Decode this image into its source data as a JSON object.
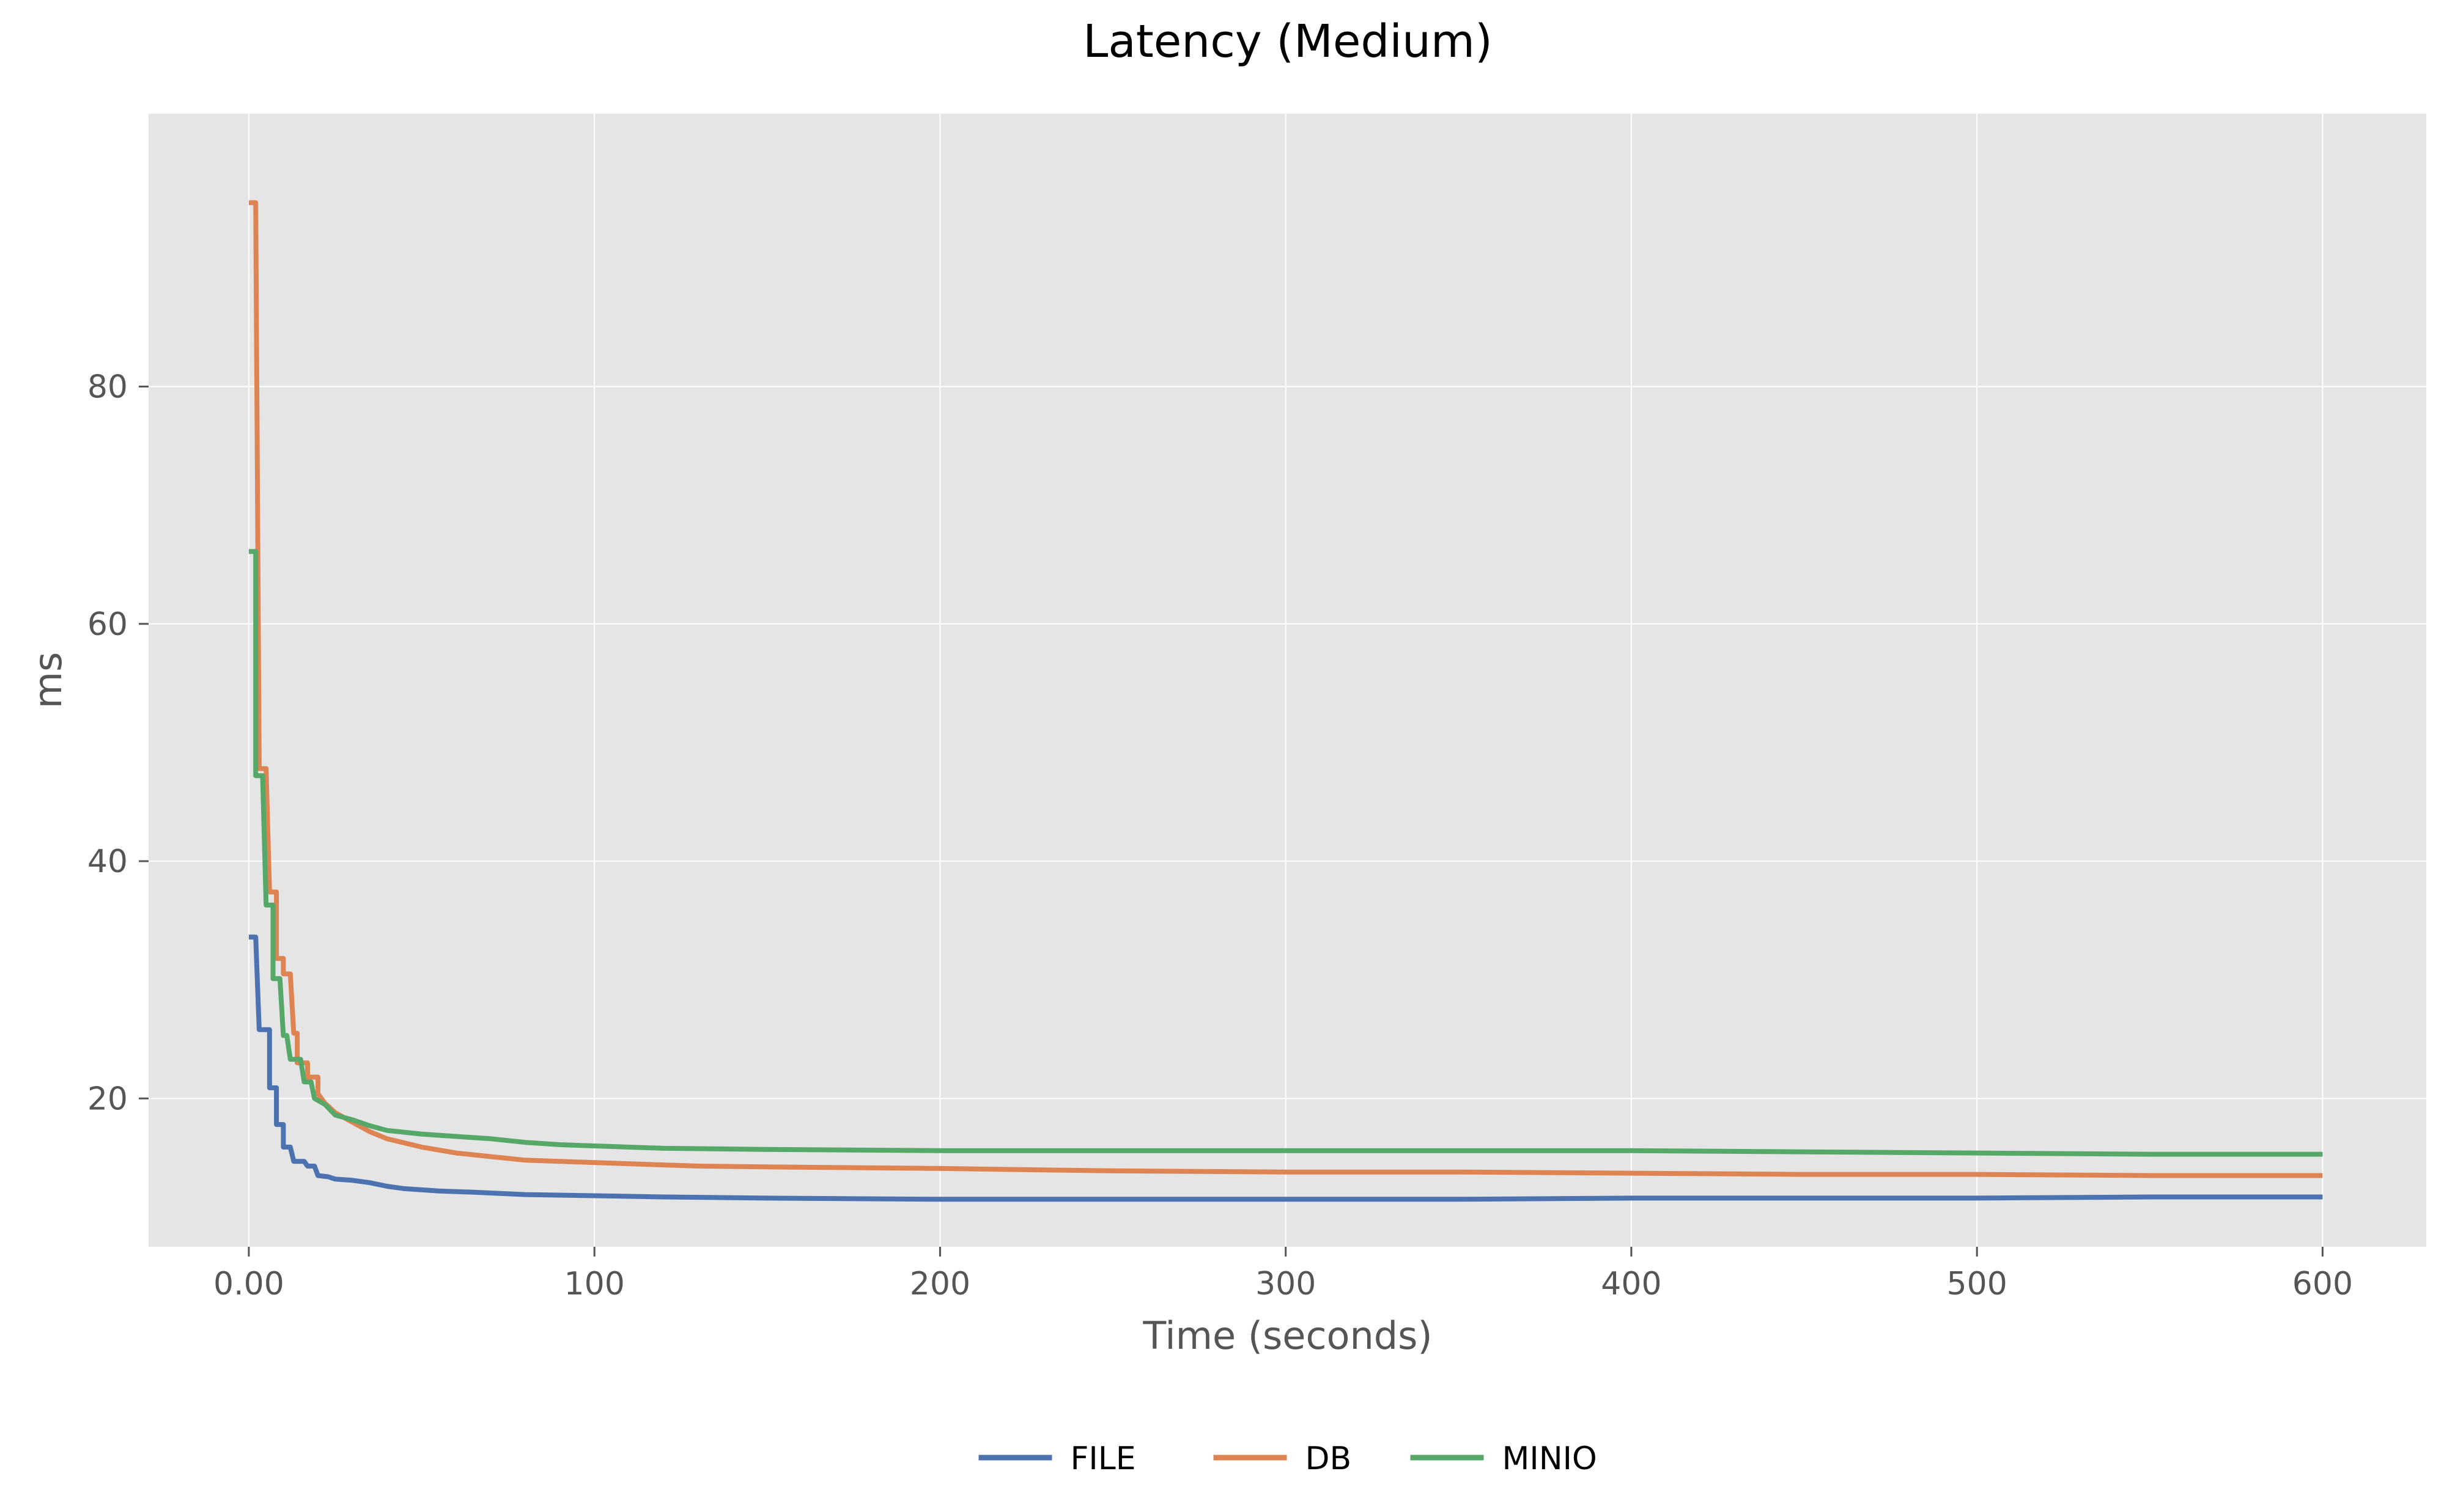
{
  "chart_data": {
    "type": "line",
    "title": "Latency (Medium)",
    "xlabel": "Time (seconds)",
    "ylabel": "ms",
    "xlim": [
      -29,
      630
    ],
    "ylim": [
      7.5,
      103
    ],
    "x_ticks": [
      {
        "value": 0,
        "label": "0.00"
      },
      {
        "value": 100,
        "label": "100"
      },
      {
        "value": 200,
        "label": "200"
      },
      {
        "value": 300,
        "label": "300"
      },
      {
        "value": 400,
        "label": "400"
      },
      {
        "value": 500,
        "label": "500"
      },
      {
        "value": 600,
        "label": "600"
      }
    ],
    "y_ticks": [
      {
        "value": 20,
        "label": "20"
      },
      {
        "value": 40,
        "label": "40"
      },
      {
        "value": 60,
        "label": "60"
      },
      {
        "value": 80,
        "label": "80"
      }
    ],
    "grid": true,
    "legend_position": "bottom-center",
    "series": [
      {
        "name": "FILE",
        "color": "#4c72b0",
        "points": [
          [
            0,
            33.6
          ],
          [
            2,
            33.6
          ],
          [
            3,
            25.8
          ],
          [
            6,
            25.8
          ],
          [
            6,
            20.9
          ],
          [
            8,
            20.9
          ],
          [
            8,
            17.8
          ],
          [
            10,
            17.8
          ],
          [
            10,
            15.9
          ],
          [
            12,
            15.9
          ],
          [
            13,
            14.7
          ],
          [
            16,
            14.7
          ],
          [
            17,
            14.3
          ],
          [
            19,
            14.3
          ],
          [
            20,
            13.5
          ],
          [
            23,
            13.4
          ],
          [
            25,
            13.2
          ],
          [
            30,
            13.1
          ],
          [
            35,
            12.9
          ],
          [
            40,
            12.6
          ],
          [
            45,
            12.4
          ],
          [
            55,
            12.2
          ],
          [
            65,
            12.1
          ],
          [
            80,
            11.9
          ],
          [
            100,
            11.8
          ],
          [
            120,
            11.7
          ],
          [
            150,
            11.6
          ],
          [
            200,
            11.5
          ],
          [
            250,
            11.5
          ],
          [
            300,
            11.5
          ],
          [
            350,
            11.5
          ],
          [
            400,
            11.6
          ],
          [
            450,
            11.6
          ],
          [
            500,
            11.6
          ],
          [
            550,
            11.7
          ],
          [
            600,
            11.7
          ]
        ]
      },
      {
        "name": "DB",
        "color": "#dd8452",
        "points": [
          [
            0,
            95.5
          ],
          [
            2,
            95.5
          ],
          [
            3,
            47.8
          ],
          [
            5,
            47.8
          ],
          [
            6,
            37.4
          ],
          [
            8,
            37.4
          ],
          [
            8,
            31.8
          ],
          [
            10,
            31.8
          ],
          [
            10,
            30.5
          ],
          [
            12,
            30.5
          ],
          [
            13,
            25.5
          ],
          [
            14,
            25.5
          ],
          [
            14,
            23.0
          ],
          [
            17,
            23.0
          ],
          [
            17,
            21.8
          ],
          [
            20,
            21.8
          ],
          [
            20,
            20.4
          ],
          [
            22,
            19.6
          ],
          [
            25,
            18.8
          ],
          [
            30,
            18.0
          ],
          [
            35,
            17.2
          ],
          [
            40,
            16.6
          ],
          [
            50,
            15.9
          ],
          [
            60,
            15.4
          ],
          [
            70,
            15.1
          ],
          [
            80,
            14.8
          ],
          [
            100,
            14.6
          ],
          [
            130,
            14.3
          ],
          [
            160,
            14.2
          ],
          [
            200,
            14.1
          ],
          [
            250,
            13.9
          ],
          [
            300,
            13.8
          ],
          [
            350,
            13.8
          ],
          [
            400,
            13.7
          ],
          [
            450,
            13.6
          ],
          [
            500,
            13.6
          ],
          [
            550,
            13.5
          ],
          [
            600,
            13.5
          ]
        ]
      },
      {
        "name": "MINIO",
        "color": "#55a868",
        "points": [
          [
            0,
            66.1
          ],
          [
            2,
            66.1
          ],
          [
            2,
            47.2
          ],
          [
            4,
            47.2
          ],
          [
            5,
            36.3
          ],
          [
            7,
            36.3
          ],
          [
            7,
            30.1
          ],
          [
            9,
            30.1
          ],
          [
            10,
            25.3
          ],
          [
            11,
            25.3
          ],
          [
            12,
            23.3
          ],
          [
            15,
            23.3
          ],
          [
            16,
            21.4
          ],
          [
            18,
            21.4
          ],
          [
            19,
            20.0
          ],
          [
            22,
            19.5
          ],
          [
            25,
            18.6
          ],
          [
            30,
            18.2
          ],
          [
            35,
            17.7
          ],
          [
            40,
            17.3
          ],
          [
            50,
            17.0
          ],
          [
            60,
            16.8
          ],
          [
            70,
            16.6
          ],
          [
            80,
            16.3
          ],
          [
            90,
            16.1
          ],
          [
            100,
            16.0
          ],
          [
            120,
            15.8
          ],
          [
            150,
            15.7
          ],
          [
            200,
            15.6
          ],
          [
            250,
            15.6
          ],
          [
            300,
            15.6
          ],
          [
            350,
            15.6
          ],
          [
            400,
            15.6
          ],
          [
            450,
            15.5
          ],
          [
            500,
            15.4
          ],
          [
            550,
            15.3
          ],
          [
            600,
            15.3
          ]
        ]
      }
    ]
  }
}
